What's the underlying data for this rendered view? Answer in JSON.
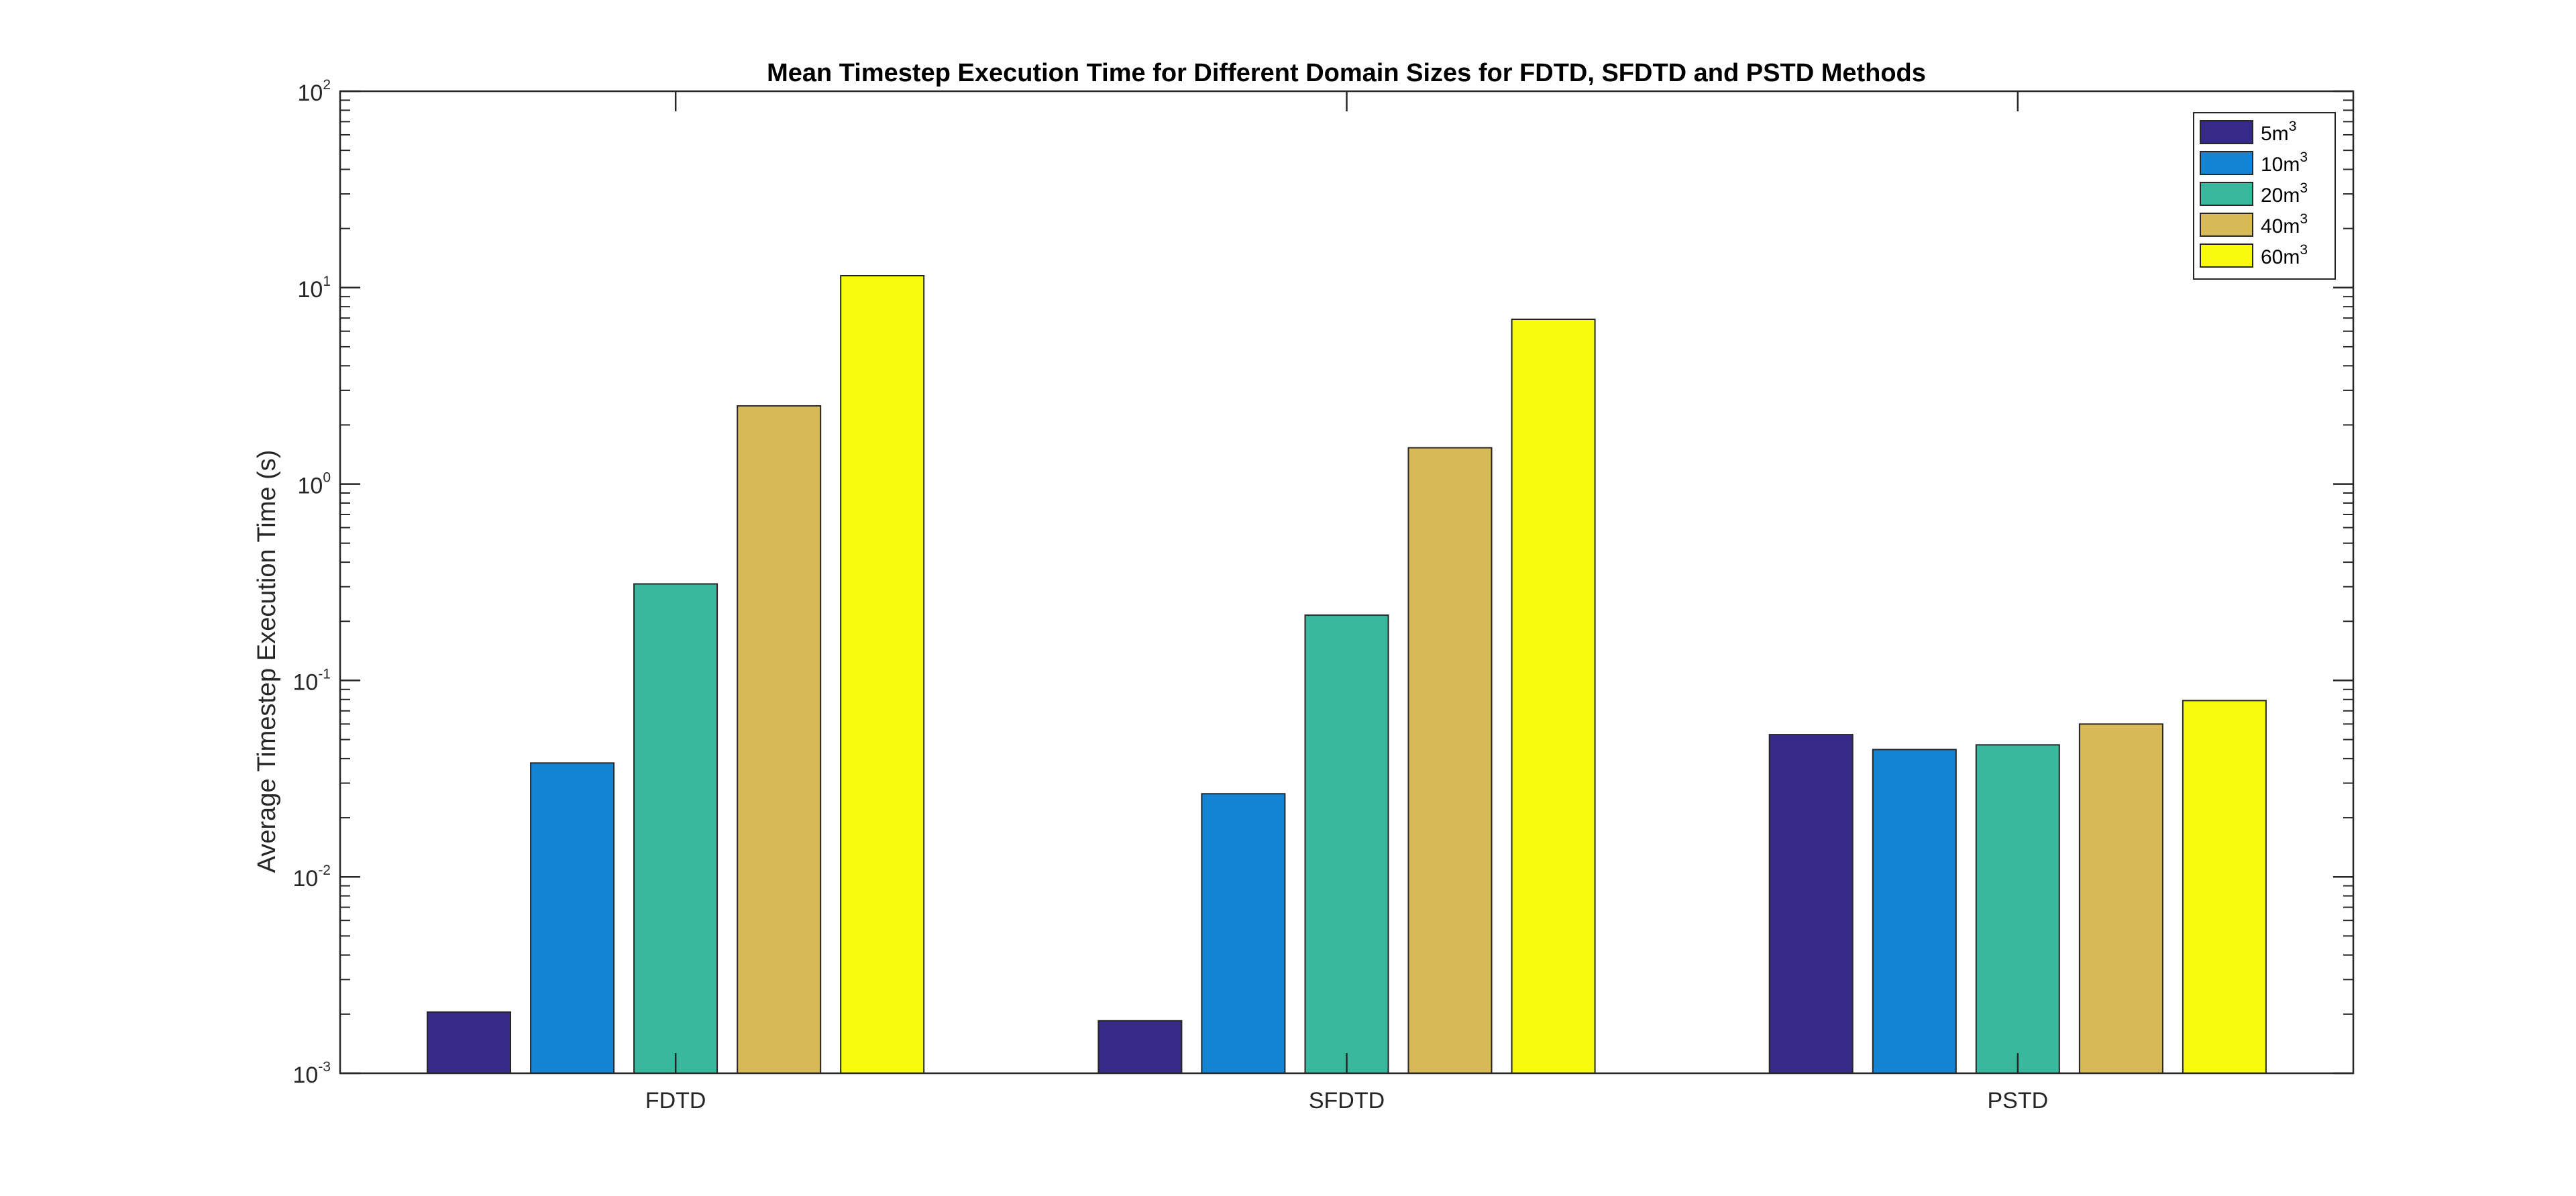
{
  "chart_data": {
    "type": "bar",
    "title": "Mean Timestep Execution Time for Different Domain Sizes for FDTD, SFDTD and PSTD Methods",
    "xlabel": "",
    "ylabel": "Average Timestep Execution Time (s)",
    "yscale": "log",
    "ylim": [
      0.001,
      100
    ],
    "ytick_labels": [
      {
        "base": "10",
        "exp": "-3"
      },
      {
        "base": "10",
        "exp": "-2"
      },
      {
        "base": "10",
        "exp": "-1"
      },
      {
        "base": "10",
        "exp": "0"
      },
      {
        "base": "10",
        "exp": "1"
      },
      {
        "base": "10",
        "exp": "2"
      }
    ],
    "categories": [
      "FDTD",
      "SFDTD",
      "PSTD"
    ],
    "series": [
      {
        "name": "5m",
        "sup": "3",
        "color": "#352A87",
        "values": [
          0.00205,
          0.00185,
          0.053
        ]
      },
      {
        "name": "10m",
        "sup": "3",
        "color": "#1484D4",
        "values": [
          0.038,
          0.0265,
          0.0445
        ]
      },
      {
        "name": "20m",
        "sup": "3",
        "color": "#38B99E",
        "values": [
          0.31,
          0.215,
          0.047
        ]
      },
      {
        "name": "40m",
        "sup": "3",
        "color": "#D8B957",
        "values": [
          2.5,
          1.53,
          0.06
        ]
      },
      {
        "name": "60m",
        "sup": "3",
        "color": "#F9FB0E",
        "values": [
          11.5,
          6.9,
          0.079
        ]
      }
    ],
    "grid": false,
    "legend_position": "top-right"
  }
}
